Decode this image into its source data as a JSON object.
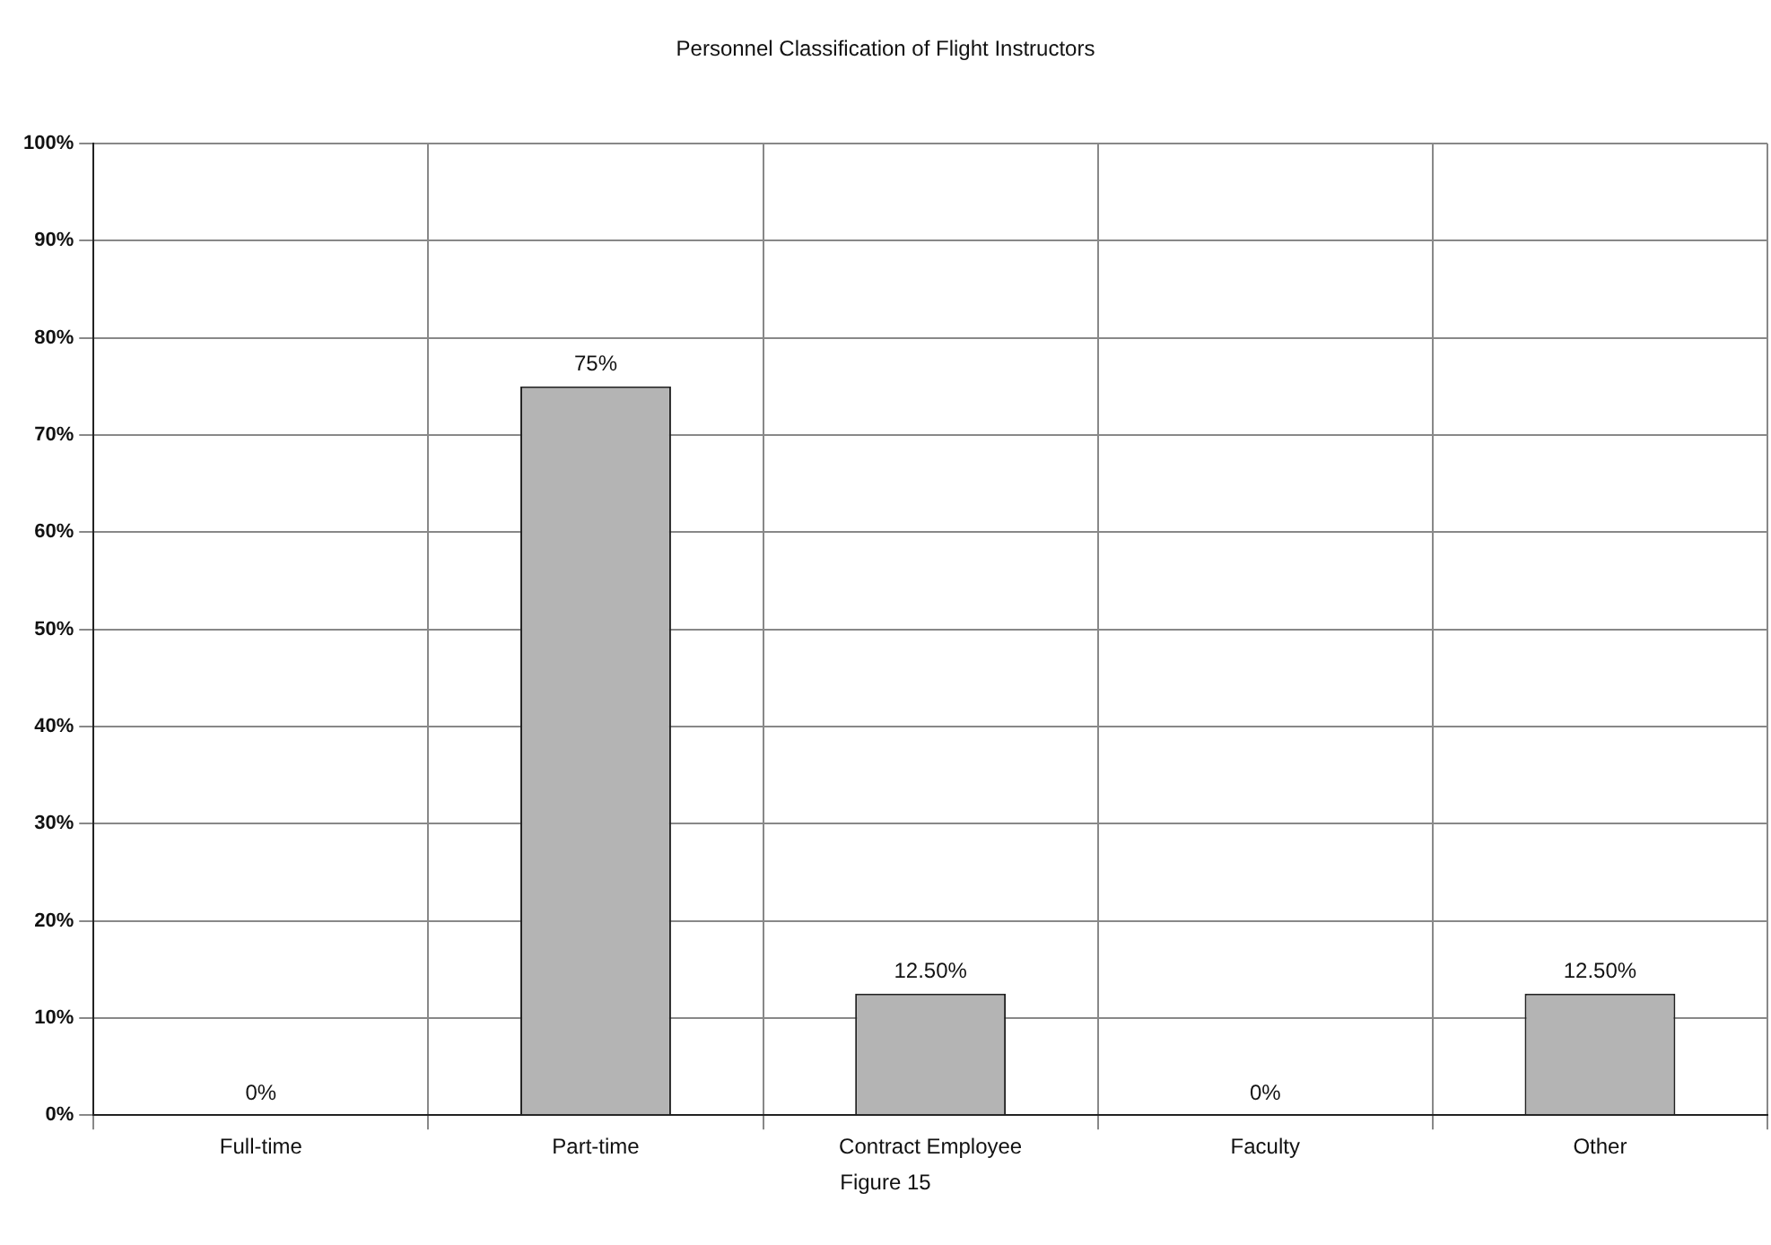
{
  "chart_data": {
    "type": "bar",
    "title": "Personnel Classification of Flight Instructors",
    "categories": [
      "Full-time",
      "Part-time",
      "Contract Employee",
      "Faculty",
      "Other"
    ],
    "values": [
      0,
      75,
      12.5,
      0,
      12.5
    ],
    "value_labels": [
      "0%",
      "75%",
      "12.50%",
      "0%",
      "12.50%"
    ],
    "color": "#b4b4b4",
    "ylim": [
      0,
      100
    ],
    "yticks": [
      {
        "value": 0,
        "label": "0%"
      },
      {
        "value": 10,
        "label": "10%"
      },
      {
        "value": 20,
        "label": "20%"
      },
      {
        "value": 30,
        "label": "30%"
      },
      {
        "value": 40,
        "label": "40%"
      },
      {
        "value": 50,
        "label": "50%"
      },
      {
        "value": 60,
        "label": "60%"
      },
      {
        "value": 70,
        "label": "70%"
      },
      {
        "value": 80,
        "label": "80%"
      },
      {
        "value": 90,
        "label": "90%"
      },
      {
        "value": 100,
        "label": "100%"
      }
    ],
    "grid": true,
    "annotations": [
      "Figure 15"
    ]
  }
}
